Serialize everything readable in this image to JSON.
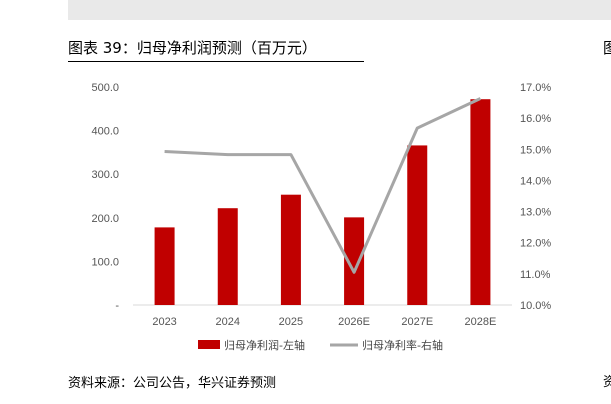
{
  "header": {
    "title": "图表 39：归母净利润预测（百万元）",
    "right_edge_glyph": "图"
  },
  "footer": {
    "source": "资料来源：公司公告，华兴证券预测",
    "right_edge_glyph": "资"
  },
  "colors": {
    "bar": "#c00000",
    "line": "#a6a6a6",
    "band": "#e9e9e9"
  },
  "chart_data": {
    "type": "bar",
    "categories": [
      "2023",
      "2024",
      "2025",
      "2026E",
      "2027E",
      "2028E"
    ],
    "series": [
      {
        "name": "归母净利润-左轴",
        "type": "bar",
        "axis": "left",
        "values": [
          178,
          222,
          253,
          201,
          366,
          472
        ]
      },
      {
        "name": "归母净利率-右轴",
        "type": "line",
        "axis": "right",
        "values": [
          14.93,
          14.83,
          14.83,
          11.05,
          15.68,
          16.63
        ]
      }
    ],
    "y_left": {
      "lim": [
        0,
        500
      ],
      "ticks": [
        0,
        100,
        200,
        300,
        400,
        500
      ],
      "tick_labels": [
        "-",
        "100.0",
        "200.0",
        "300.0",
        "400.0",
        "500.0"
      ]
    },
    "y_right": {
      "lim": [
        10,
        17
      ],
      "ticks": [
        10,
        11,
        12,
        13,
        14,
        15,
        16,
        17
      ],
      "tick_labels": [
        "10.0%",
        "11.0%",
        "12.0%",
        "13.0%",
        "14.0%",
        "15.0%",
        "16.0%",
        "17.0%"
      ]
    },
    "grid": false,
    "legend_position": "bottom"
  }
}
